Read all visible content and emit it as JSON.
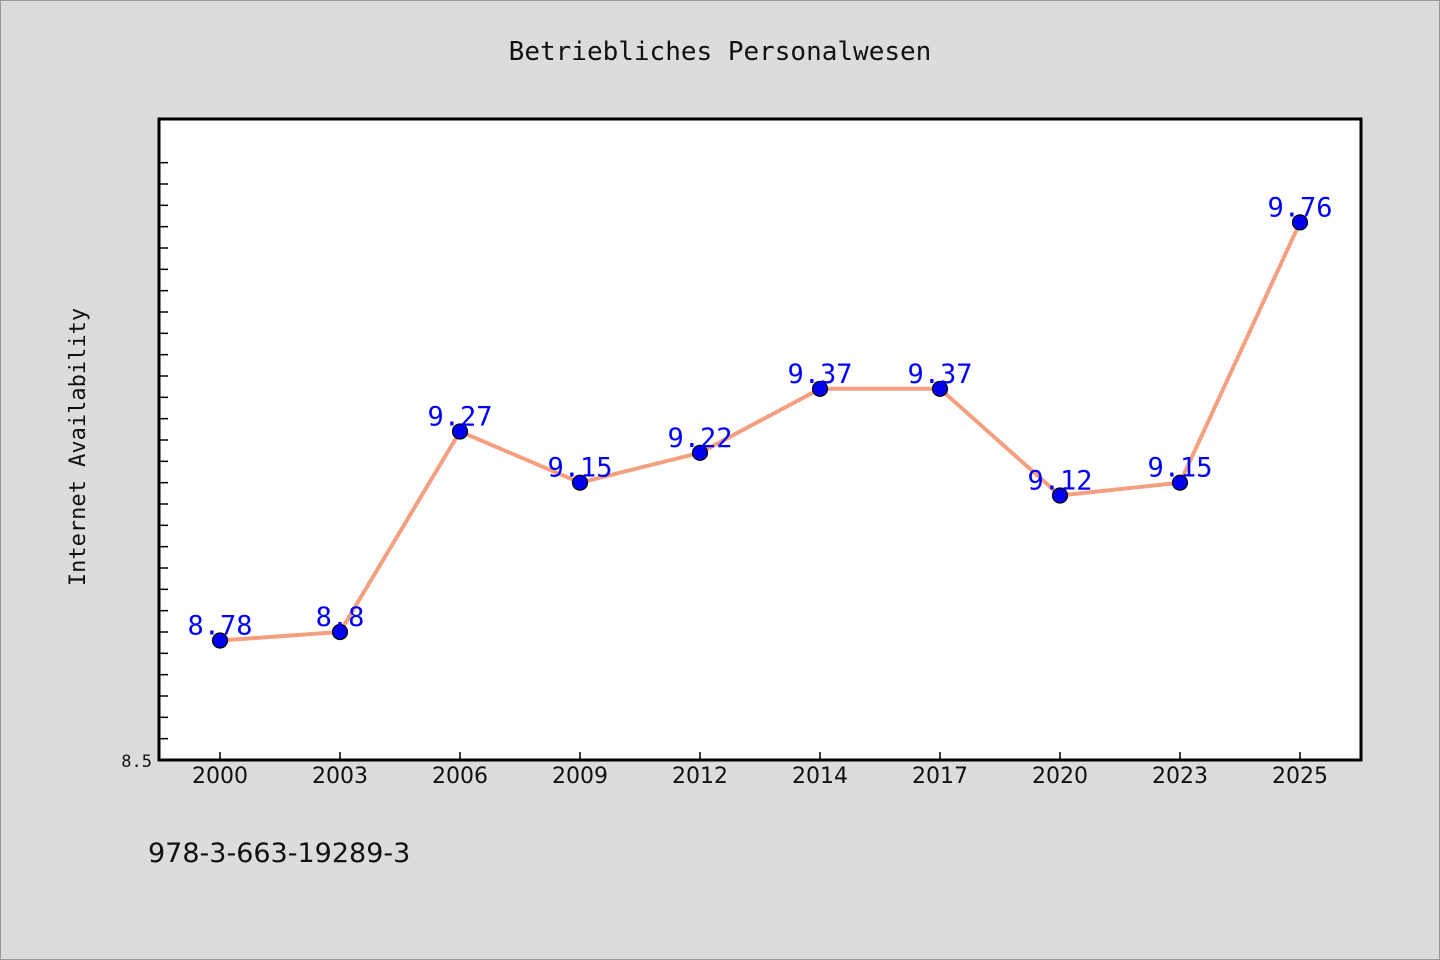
{
  "chart_data": {
    "type": "line",
    "title": "Betriebliches Personalwesen",
    "xlabel": "",
    "ylabel": "Internet Availability",
    "categories": [
      "2000",
      "2003",
      "2006",
      "2009",
      "2012",
      "2014",
      "2017",
      "2020",
      "2023",
      "2025"
    ],
    "series": [
      {
        "values": [
          8.78,
          8.8,
          9.27,
          9.15,
          9.22,
          9.37,
          9.37,
          9.12,
          9.15,
          9.76
        ]
      }
    ],
    "data_labels": [
      "8.78",
      "8.8",
      "9.27",
      "9.15",
      "9.22",
      "9.37",
      "9.37",
      "9.12",
      "9.15",
      "9.76"
    ],
    "ylim": [
      8.5,
      10.0
    ],
    "y_tick_labels": [
      "8.5"
    ],
    "grid": false,
    "colors": {
      "line": "#f4a080",
      "marker": "#0000ee",
      "label": "#0000ff",
      "background": "#dcdcdc",
      "plot_background": "#ffffff"
    }
  },
  "footer": {
    "isbn": "978-3-663-19289-3"
  }
}
